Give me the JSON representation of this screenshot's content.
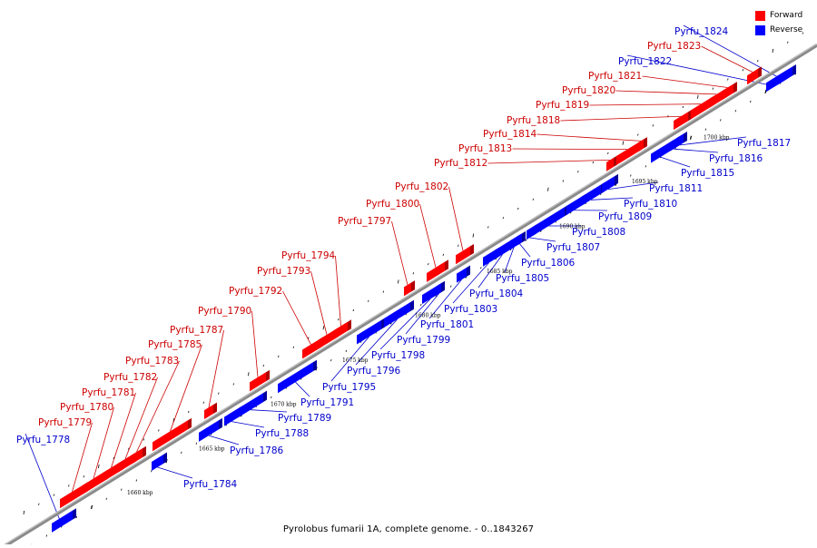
{
  "legend": {
    "forward": {
      "label": "Forward",
      "color": "#ff0000"
    },
    "reverse": {
      "label": "Reverse",
      "color": "#0000ff"
    }
  },
  "caption": "Pyrolobus fumarii 1A, complete genome. - 0..1843267",
  "scale_labels": [
    "1660 kbp",
    "1665 kbp",
    "1670 kbp",
    "1675 kbp",
    "1680 kbp",
    "1685 kbp",
    "1690 kbp",
    "1695 kbp",
    "1700 kbp"
  ],
  "genes": [
    {
      "id": "Pyrfu_1778",
      "strand": "reverse"
    },
    {
      "id": "Pyrfu_1779",
      "strand": "forward"
    },
    {
      "id": "Pyrfu_1780",
      "strand": "forward"
    },
    {
      "id": "Pyrfu_1781",
      "strand": "forward"
    },
    {
      "id": "Pyrfu_1782",
      "strand": "forward"
    },
    {
      "id": "Pyrfu_1783",
      "strand": "forward"
    },
    {
      "id": "Pyrfu_1784",
      "strand": "reverse"
    },
    {
      "id": "Pyrfu_1785",
      "strand": "forward"
    },
    {
      "id": "Pyrfu_1786",
      "strand": "reverse"
    },
    {
      "id": "Pyrfu_1787",
      "strand": "forward"
    },
    {
      "id": "Pyrfu_1788",
      "strand": "reverse"
    },
    {
      "id": "Pyrfu_1789",
      "strand": "reverse"
    },
    {
      "id": "Pyrfu_1790",
      "strand": "forward"
    },
    {
      "id": "Pyrfu_1791",
      "strand": "reverse"
    },
    {
      "id": "Pyrfu_1792",
      "strand": "forward"
    },
    {
      "id": "Pyrfu_1793",
      "strand": "forward"
    },
    {
      "id": "Pyrfu_1794",
      "strand": "forward"
    },
    {
      "id": "Pyrfu_1795",
      "strand": "reverse"
    },
    {
      "id": "Pyrfu_1796",
      "strand": "reverse"
    },
    {
      "id": "Pyrfu_1797",
      "strand": "forward"
    },
    {
      "id": "Pyrfu_1798",
      "strand": "reverse"
    },
    {
      "id": "Pyrfu_1799",
      "strand": "reverse"
    },
    {
      "id": "Pyrfu_1800",
      "strand": "forward"
    },
    {
      "id": "Pyrfu_1801",
      "strand": "reverse"
    },
    {
      "id": "Pyrfu_1802",
      "strand": "forward"
    },
    {
      "id": "Pyrfu_1803",
      "strand": "reverse"
    },
    {
      "id": "Pyrfu_1804",
      "strand": "reverse"
    },
    {
      "id": "Pyrfu_1805",
      "strand": "reverse"
    },
    {
      "id": "Pyrfu_1806",
      "strand": "reverse"
    },
    {
      "id": "Pyrfu_1807",
      "strand": "reverse"
    },
    {
      "id": "Pyrfu_1808",
      "strand": "reverse"
    },
    {
      "id": "Pyrfu_1809",
      "strand": "reverse"
    },
    {
      "id": "Pyrfu_1810",
      "strand": "reverse"
    },
    {
      "id": "Pyrfu_1811",
      "strand": "reverse"
    },
    {
      "id": "Pyrfu_1812",
      "strand": "forward"
    },
    {
      "id": "Pyrfu_1813",
      "strand": "forward"
    },
    {
      "id": "Pyrfu_1814",
      "strand": "forward"
    },
    {
      "id": "Pyrfu_1815",
      "strand": "reverse"
    },
    {
      "id": "Pyrfu_1816",
      "strand": "reverse"
    },
    {
      "id": "Pyrfu_1817",
      "strand": "reverse"
    },
    {
      "id": "Pyrfu_1818",
      "strand": "forward"
    },
    {
      "id": "Pyrfu_1819",
      "strand": "forward"
    },
    {
      "id": "Pyrfu_1820",
      "strand": "forward"
    },
    {
      "id": "Pyrfu_1821",
      "strand": "forward"
    },
    {
      "id": "Pyrfu_1822",
      "strand": "reverse"
    },
    {
      "id": "Pyrfu_1823",
      "strand": "forward"
    },
    {
      "id": "Pyrfu_1824",
      "strand": "reverse"
    }
  ]
}
